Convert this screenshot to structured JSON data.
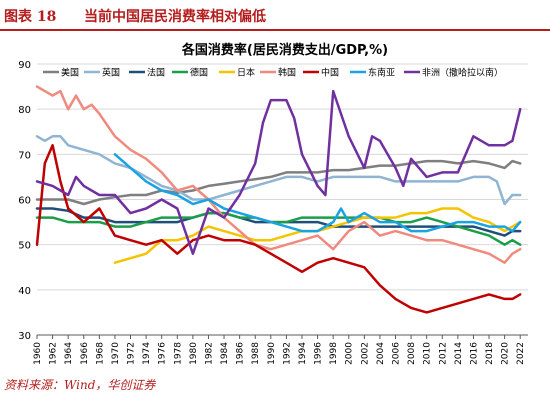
{
  "figure": {
    "label": "图表 18",
    "title": "当前中国居民消费率相对偏低",
    "source": "资料来源：Wind，华创证券"
  },
  "chart_data": {
    "type": "line",
    "title": "各国消费率(居民消费支出/GDP,%)",
    "ylim": [
      30,
      90
    ],
    "yticks": [
      30,
      40,
      50,
      60,
      70,
      80,
      90
    ],
    "xlim": [
      1960,
      2023
    ],
    "xticks": [
      1960,
      1962,
      1964,
      1966,
      1968,
      1970,
      1972,
      1974,
      1976,
      1978,
      1980,
      1982,
      1984,
      1986,
      1988,
      1990,
      1992,
      1994,
      1996,
      1998,
      2000,
      2002,
      2004,
      2006,
      2008,
      2010,
      2012,
      2014,
      2016,
      2018,
      2020,
      2022
    ],
    "grid": "horizontal",
    "legend": "top",
    "series": [
      {
        "name": "美国",
        "color": "#7f7f7f",
        "width": 2.5,
        "points": [
          [
            1960,
            60
          ],
          [
            1962,
            60
          ],
          [
            1964,
            60
          ],
          [
            1966,
            59
          ],
          [
            1968,
            60
          ],
          [
            1970,
            60.5
          ],
          [
            1972,
            61
          ],
          [
            1974,
            61
          ],
          [
            1976,
            62
          ],
          [
            1978,
            61.5
          ],
          [
            1980,
            62
          ],
          [
            1982,
            63
          ],
          [
            1984,
            63.5
          ],
          [
            1986,
            64
          ],
          [
            1988,
            64.5
          ],
          [
            1990,
            65
          ],
          [
            1992,
            66
          ],
          [
            1994,
            66
          ],
          [
            1996,
            66
          ],
          [
            1998,
            66.5
          ],
          [
            2000,
            66.5
          ],
          [
            2002,
            67
          ],
          [
            2004,
            67.5
          ],
          [
            2006,
            67.5
          ],
          [
            2008,
            68
          ],
          [
            2010,
            68.5
          ],
          [
            2012,
            68.5
          ],
          [
            2014,
            68
          ],
          [
            2016,
            68.5
          ],
          [
            2018,
            68
          ],
          [
            2020,
            67
          ],
          [
            2021,
            68.5
          ],
          [
            2022,
            68
          ]
        ]
      },
      {
        "name": "英国",
        "color": "#8fb4d4",
        "width": 2.5,
        "points": [
          [
            1960,
            74
          ],
          [
            1961,
            73
          ],
          [
            1962,
            74
          ],
          [
            1963,
            74
          ],
          [
            1964,
            72
          ],
          [
            1966,
            71
          ],
          [
            1968,
            70
          ],
          [
            1970,
            68
          ],
          [
            1972,
            67
          ],
          [
            1974,
            65
          ],
          [
            1976,
            63
          ],
          [
            1978,
            62
          ],
          [
            1979,
            61
          ],
          [
            1980,
            60
          ],
          [
            1982,
            60
          ],
          [
            1984,
            61
          ],
          [
            1986,
            62
          ],
          [
            1988,
            63
          ],
          [
            1990,
            64
          ],
          [
            1992,
            65
          ],
          [
            1994,
            65
          ],
          [
            1996,
            64
          ],
          [
            1998,
            65
          ],
          [
            2000,
            65
          ],
          [
            2002,
            65
          ],
          [
            2004,
            65
          ],
          [
            2006,
            64
          ],
          [
            2008,
            64
          ],
          [
            2010,
            64
          ],
          [
            2012,
            64
          ],
          [
            2014,
            64
          ],
          [
            2016,
            65
          ],
          [
            2018,
            65
          ],
          [
            2019,
            64
          ],
          [
            2020,
            59
          ],
          [
            2021,
            61
          ],
          [
            2022,
            61
          ]
        ]
      },
      {
        "name": "法国",
        "color": "#1f4e79",
        "width": 2.5,
        "points": [
          [
            1960,
            58
          ],
          [
            1962,
            58
          ],
          [
            1964,
            57.5
          ],
          [
            1966,
            56
          ],
          [
            1968,
            56
          ],
          [
            1970,
            55
          ],
          [
            1972,
            55
          ],
          [
            1974,
            55
          ],
          [
            1976,
            55
          ],
          [
            1978,
            55
          ],
          [
            1980,
            56
          ],
          [
            1982,
            57
          ],
          [
            1984,
            57
          ],
          [
            1986,
            56
          ],
          [
            1988,
            55
          ],
          [
            1990,
            55
          ],
          [
            1992,
            55
          ],
          [
            1994,
            55
          ],
          [
            1996,
            55
          ],
          [
            1998,
            54
          ],
          [
            2000,
            54
          ],
          [
            2002,
            54
          ],
          [
            2004,
            54
          ],
          [
            2006,
            54
          ],
          [
            2008,
            54
          ],
          [
            2010,
            54
          ],
          [
            2012,
            54
          ],
          [
            2014,
            54
          ],
          [
            2016,
            54
          ],
          [
            2018,
            53
          ],
          [
            2020,
            52
          ],
          [
            2021,
            53
          ],
          [
            2022,
            53
          ]
        ]
      },
      {
        "name": "德国",
        "color": "#1a9e48",
        "width": 2.5,
        "points": [
          [
            1960,
            56
          ],
          [
            1962,
            56
          ],
          [
            1964,
            55
          ],
          [
            1966,
            55
          ],
          [
            1968,
            55
          ],
          [
            1970,
            54
          ],
          [
            1972,
            54
          ],
          [
            1974,
            55
          ],
          [
            1976,
            56
          ],
          [
            1978,
            56
          ],
          [
            1980,
            56
          ],
          [
            1982,
            57
          ],
          [
            1984,
            57
          ],
          [
            1986,
            56
          ],
          [
            1988,
            56
          ],
          [
            1990,
            55
          ],
          [
            1992,
            55
          ],
          [
            1994,
            56
          ],
          [
            1996,
            56
          ],
          [
            1998,
            56
          ],
          [
            2000,
            56
          ],
          [
            2002,
            56
          ],
          [
            2004,
            56
          ],
          [
            2006,
            55
          ],
          [
            2008,
            55
          ],
          [
            2010,
            56
          ],
          [
            2012,
            55
          ],
          [
            2014,
            54
          ],
          [
            2016,
            53
          ],
          [
            2018,
            52
          ],
          [
            2020,
            50
          ],
          [
            2021,
            51
          ],
          [
            2022,
            50
          ]
        ]
      },
      {
        "name": "日本",
        "color": "#f5c400",
        "width": 2.5,
        "points": [
          [
            1970,
            46
          ],
          [
            1972,
            47
          ],
          [
            1974,
            48
          ],
          [
            1976,
            51
          ],
          [
            1978,
            51
          ],
          [
            1980,
            52
          ],
          [
            1982,
            54
          ],
          [
            1984,
            53
          ],
          [
            1986,
            52
          ],
          [
            1988,
            51
          ],
          [
            1990,
            51
          ],
          [
            1992,
            52
          ],
          [
            1994,
            53
          ],
          [
            1996,
            53
          ],
          [
            1998,
            54
          ],
          [
            2000,
            55
          ],
          [
            2002,
            56
          ],
          [
            2004,
            56
          ],
          [
            2006,
            56
          ],
          [
            2008,
            57
          ],
          [
            2010,
            57
          ],
          [
            2012,
            58
          ],
          [
            2014,
            58
          ],
          [
            2016,
            56
          ],
          [
            2018,
            55
          ],
          [
            2020,
            53
          ],
          [
            2021,
            54
          ],
          [
            2022,
            55
          ]
        ]
      },
      {
        "name": "韩国",
        "color": "#f08a7e",
        "width": 2.5,
        "points": [
          [
            1960,
            85
          ],
          [
            1962,
            83
          ],
          [
            1963,
            84
          ],
          [
            1964,
            80
          ],
          [
            1965,
            83
          ],
          [
            1966,
            80
          ],
          [
            1967,
            81
          ],
          [
            1968,
            79
          ],
          [
            1970,
            74
          ],
          [
            1972,
            71
          ],
          [
            1974,
            69
          ],
          [
            1976,
            66
          ],
          [
            1978,
            62
          ],
          [
            1980,
            63
          ],
          [
            1982,
            60
          ],
          [
            1984,
            56
          ],
          [
            1986,
            53
          ],
          [
            1988,
            50
          ],
          [
            1990,
            49
          ],
          [
            1992,
            50
          ],
          [
            1994,
            51
          ],
          [
            1996,
            52
          ],
          [
            1998,
            49
          ],
          [
            2000,
            53
          ],
          [
            2002,
            55
          ],
          [
            2004,
            52
          ],
          [
            2006,
            53
          ],
          [
            2008,
            52
          ],
          [
            2010,
            51
          ],
          [
            2012,
            51
          ],
          [
            2014,
            50
          ],
          [
            2016,
            49
          ],
          [
            2018,
            48
          ],
          [
            2020,
            46
          ],
          [
            2021,
            48
          ],
          [
            2022,
            49
          ]
        ]
      },
      {
        "name": "中国",
        "color": "#c00000",
        "width": 2.5,
        "points": [
          [
            1960,
            50
          ],
          [
            1961,
            68
          ],
          [
            1962,
            72
          ],
          [
            1963,
            64
          ],
          [
            1964,
            58
          ],
          [
            1966,
            55
          ],
          [
            1968,
            58
          ],
          [
            1969,
            55
          ],
          [
            1970,
            52
          ],
          [
            1972,
            51
          ],
          [
            1974,
            50
          ],
          [
            1976,
            51
          ],
          [
            1978,
            48
          ],
          [
            1980,
            51
          ],
          [
            1982,
            52
          ],
          [
            1984,
            51
          ],
          [
            1986,
            51
          ],
          [
            1988,
            50
          ],
          [
            1990,
            48
          ],
          [
            1992,
            46
          ],
          [
            1994,
            44
          ],
          [
            1996,
            46
          ],
          [
            1998,
            47
          ],
          [
            2000,
            46
          ],
          [
            2002,
            45
          ],
          [
            2004,
            41
          ],
          [
            2006,
            38
          ],
          [
            2008,
            36
          ],
          [
            2010,
            35
          ],
          [
            2012,
            36
          ],
          [
            2014,
            37
          ],
          [
            2016,
            38
          ],
          [
            2018,
            39
          ],
          [
            2020,
            38
          ],
          [
            2021,
            38
          ],
          [
            2022,
            39
          ]
        ]
      },
      {
        "name": "东南亚",
        "color": "#1aa3e0",
        "width": 2.5,
        "points": [
          [
            1970,
            70
          ],
          [
            1972,
            67
          ],
          [
            1974,
            64
          ],
          [
            1976,
            62
          ],
          [
            1978,
            61
          ],
          [
            1980,
            59
          ],
          [
            1982,
            60
          ],
          [
            1984,
            58
          ],
          [
            1986,
            57
          ],
          [
            1988,
            56
          ],
          [
            1990,
            55
          ],
          [
            1992,
            54
          ],
          [
            1994,
            53
          ],
          [
            1996,
            53
          ],
          [
            1998,
            55
          ],
          [
            1999,
            58
          ],
          [
            2000,
            55
          ],
          [
            2002,
            57
          ],
          [
            2004,
            55
          ],
          [
            2006,
            55
          ],
          [
            2008,
            53
          ],
          [
            2010,
            53
          ],
          [
            2012,
            54
          ],
          [
            2014,
            55
          ],
          [
            2016,
            55
          ],
          [
            2018,
            54
          ],
          [
            2020,
            54
          ],
          [
            2021,
            53
          ],
          [
            2022,
            55
          ]
        ]
      },
      {
        "name": "非洲（撒哈拉以南）",
        "color": "#7030a0",
        "width": 2.5,
        "points": [
          [
            1960,
            64
          ],
          [
            1962,
            63
          ],
          [
            1964,
            61
          ],
          [
            1965,
            65
          ],
          [
            1966,
            63
          ],
          [
            1968,
            61
          ],
          [
            1970,
            61
          ],
          [
            1972,
            57
          ],
          [
            1974,
            58
          ],
          [
            1976,
            60
          ],
          [
            1978,
            58
          ],
          [
            1980,
            48
          ],
          [
            1982,
            58
          ],
          [
            1984,
            56
          ],
          [
            1986,
            61
          ],
          [
            1988,
            68
          ],
          [
            1989,
            77
          ],
          [
            1990,
            82
          ],
          [
            1992,
            82
          ],
          [
            1993,
            78
          ],
          [
            1994,
            70
          ],
          [
            1996,
            63
          ],
          [
            1997,
            61
          ],
          [
            1998,
            84
          ],
          [
            2000,
            74
          ],
          [
            2002,
            67
          ],
          [
            2003,
            74
          ],
          [
            2004,
            73
          ],
          [
            2006,
            67
          ],
          [
            2007,
            63
          ],
          [
            2008,
            69
          ],
          [
            2010,
            65
          ],
          [
            2012,
            66
          ],
          [
            2014,
            66
          ],
          [
            2016,
            74
          ],
          [
            2018,
            72
          ],
          [
            2020,
            72
          ],
          [
            2021,
            73
          ],
          [
            2022,
            80
          ]
        ]
      }
    ]
  }
}
